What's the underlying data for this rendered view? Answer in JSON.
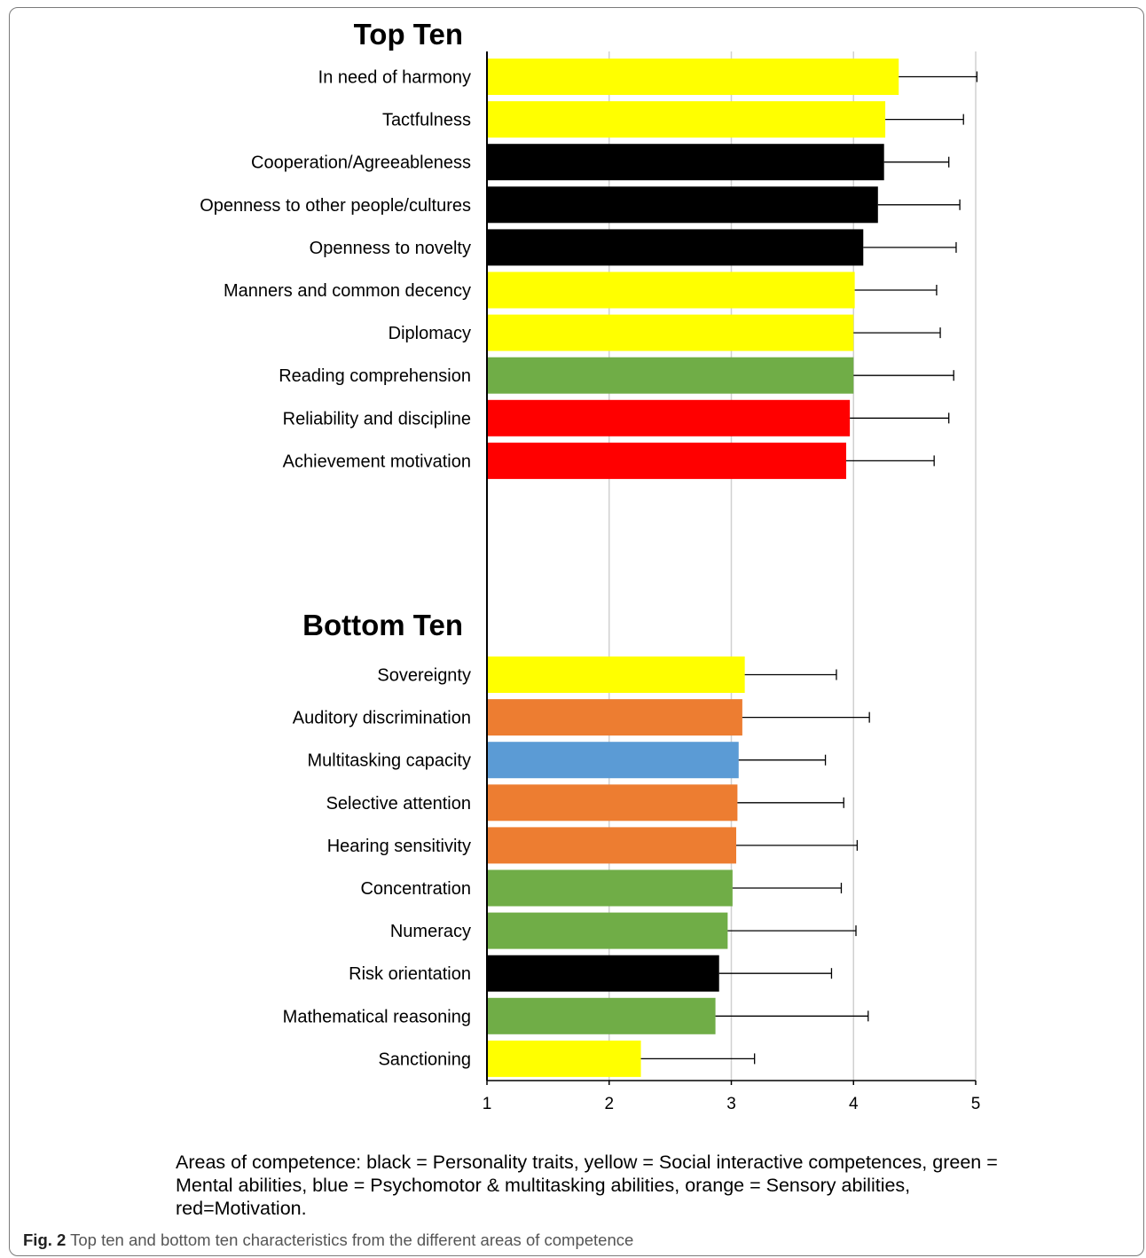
{
  "chart_data": {
    "type": "bar",
    "orientation": "horizontal",
    "xlim": [
      1,
      5
    ],
    "x_ticks": [
      "1",
      "2",
      "3",
      "4",
      "5"
    ],
    "grid": "vertical",
    "colors": {
      "black": "#000000",
      "yellow": "#ffff00",
      "green": "#70ad47",
      "blue": "#5b9bd5",
      "orange": "#ed7d31",
      "red": "#ff0000"
    },
    "groups": [
      {
        "title": "Top Ten",
        "items": [
          {
            "label": "In need of harmony",
            "value": 4.37,
            "error": 0.64,
            "color": "yellow"
          },
          {
            "label": "Tactfulness",
            "value": 4.26,
            "error": 0.64,
            "color": "yellow"
          },
          {
            "label": "Cooperation/Agreeableness",
            "value": 4.25,
            "error": 0.53,
            "color": "black"
          },
          {
            "label": "Openness to other people/cultures",
            "value": 4.2,
            "error": 0.67,
            "color": "black"
          },
          {
            "label": "Openness to novelty",
            "value": 4.08,
            "error": 0.76,
            "color": "black"
          },
          {
            "label": "Manners and common decency",
            "value": 4.01,
            "error": 0.67,
            "color": "yellow"
          },
          {
            "label": "Diplomacy",
            "value": 4.0,
            "error": 0.71,
            "color": "yellow"
          },
          {
            "label": "Reading comprehension",
            "value": 4.0,
            "error": 0.82,
            "color": "green"
          },
          {
            "label": "Reliability and discipline",
            "value": 3.97,
            "error": 0.81,
            "color": "red"
          },
          {
            "label": "Achievement motivation",
            "value": 3.94,
            "error": 0.72,
            "color": "red"
          }
        ]
      },
      {
        "title": "Bottom Ten",
        "items": [
          {
            "label": "Sovereignty",
            "value": 3.11,
            "error": 0.75,
            "color": "yellow"
          },
          {
            "label": "Auditory discrimination",
            "value": 3.09,
            "error": 1.04,
            "color": "orange"
          },
          {
            "label": "Multitasking capacity",
            "value": 3.06,
            "error": 0.71,
            "color": "blue"
          },
          {
            "label": "Selective attention",
            "value": 3.05,
            "error": 0.87,
            "color": "orange"
          },
          {
            "label": "Hearing sensitivity",
            "value": 3.04,
            "error": 0.99,
            "color": "orange"
          },
          {
            "label": "Concentration",
            "value": 3.01,
            "error": 0.89,
            "color": "green"
          },
          {
            "label": "Numeracy",
            "value": 2.97,
            "error": 1.05,
            "color": "green"
          },
          {
            "label": "Risk orientation",
            "value": 2.9,
            "error": 0.92,
            "color": "black"
          },
          {
            "label": "Mathematical reasoning",
            "value": 2.87,
            "error": 1.25,
            "color": "green"
          },
          {
            "label": "Sanctioning",
            "value": 2.26,
            "error": 0.93,
            "color": "yellow"
          }
        ]
      }
    ]
  },
  "legend_note": "Areas of competence: black = Personality traits, yellow = Social interactive competences, green = Mental abilities, blue = Psychomotor & multitasking abilities, orange = Sensory abilities, red=Motivation.",
  "caption": {
    "label": "Fig. 2",
    "text": "Top ten and bottom ten characteristics from the different areas of competence"
  }
}
